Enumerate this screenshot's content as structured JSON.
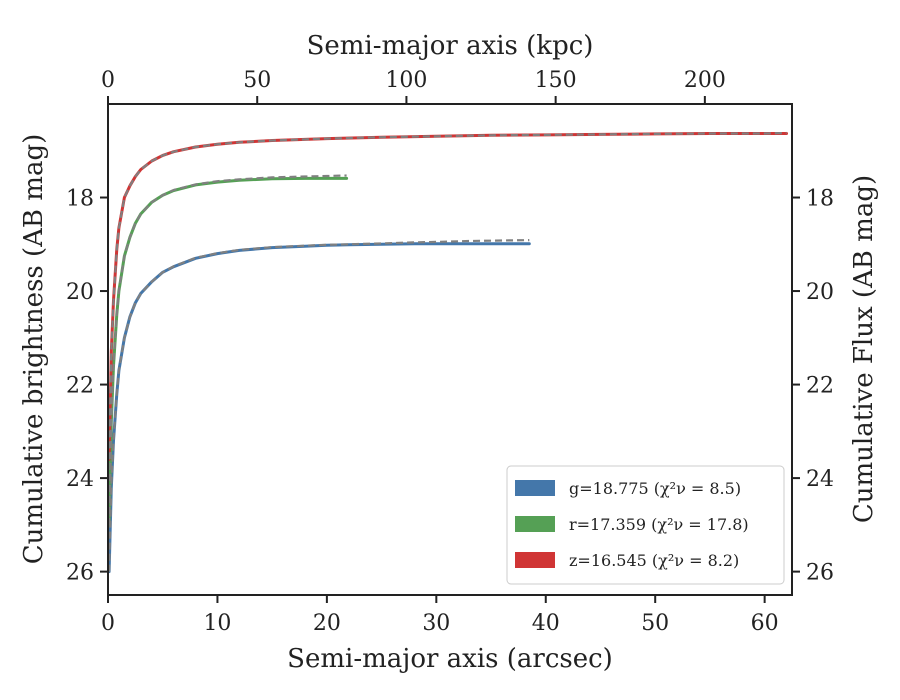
{
  "chart_data": {
    "type": "line",
    "xlabel": "Semi-major axis (arcsec)",
    "ylabel": "Cumulative brightness (AB mag)",
    "x2label": "Semi-major axis (kpc)",
    "y2label": "Cumulative Flux (AB mag)",
    "xlim": [
      0,
      62.5
    ],
    "ylim": [
      26.5,
      16.0
    ],
    "y_inverted": true,
    "x2lim": [
      0,
      229.2
    ],
    "xticks": [
      0,
      10,
      20,
      30,
      40,
      50,
      60
    ],
    "xtick_labels": [
      "0",
      "10",
      "20",
      "30",
      "40",
      "50",
      "60"
    ],
    "x2ticks": [
      0,
      50,
      100,
      150,
      200
    ],
    "x2tick_labels": [
      "0",
      "50",
      "100",
      "150",
      "200"
    ],
    "yticks": [
      18,
      20,
      22,
      24,
      26
    ],
    "ytick_labels": [
      "18",
      "20",
      "22",
      "24",
      "26"
    ],
    "grid": false,
    "legend_position": "bottom-right",
    "series": [
      {
        "name": "g=18.775 (χ²ν = 8.5)",
        "color": "#4477aa",
        "model_color": "#808080",
        "x": [
          0.1,
          0.3,
          0.5,
          0.8,
          1.0,
          1.5,
          2.0,
          2.5,
          3.0,
          4.0,
          5.0,
          6.0,
          8.0,
          10.0,
          12.0,
          15.0,
          18.0,
          20.0,
          22.0,
          25.0,
          28.0,
          30.0,
          33.0,
          36.0,
          38.5
        ],
        "y": [
          26.0,
          24.2,
          23.2,
          22.2,
          21.7,
          21.0,
          20.55,
          20.25,
          20.05,
          19.8,
          19.6,
          19.48,
          19.3,
          19.2,
          19.13,
          19.07,
          19.04,
          19.02,
          19.01,
          19.0,
          18.99,
          18.99,
          18.99,
          18.99,
          18.99
        ],
        "model_x": [
          0.1,
          0.3,
          0.5,
          0.8,
          1.0,
          1.5,
          2.0,
          2.5,
          3.0,
          4.0,
          5.0,
          6.0,
          8.0,
          10.0,
          12.0,
          15.0,
          18.0,
          20.0,
          22.0,
          25.0,
          28.0,
          30.0,
          33.0,
          36.0,
          38.5
        ],
        "model_y": [
          26.0,
          24.2,
          23.2,
          22.2,
          21.7,
          21.0,
          20.55,
          20.25,
          20.05,
          19.8,
          19.6,
          19.47,
          19.29,
          19.19,
          19.12,
          19.06,
          19.03,
          19.01,
          19.0,
          18.98,
          18.96,
          18.95,
          18.93,
          18.92,
          18.91
        ]
      },
      {
        "name": "r=17.359 (χ²ν = 17.8)",
        "color": "#55a055",
        "model_color": "#808080",
        "x": [
          0.1,
          0.3,
          0.5,
          0.8,
          1.0,
          1.5,
          2.0,
          2.5,
          3.0,
          4.0,
          5.0,
          6.0,
          8.0,
          10.0,
          12.0,
          15.0,
          18.0,
          20.0,
          21.8
        ],
        "y": [
          25.0,
          22.8,
          21.6,
          20.5,
          20.0,
          19.25,
          18.85,
          18.55,
          18.35,
          18.1,
          17.95,
          17.85,
          17.73,
          17.67,
          17.63,
          17.6,
          17.59,
          17.59,
          17.59
        ],
        "model_x": [
          0.1,
          0.3,
          0.5,
          0.8,
          1.0,
          1.5,
          2.0,
          2.5,
          3.0,
          4.0,
          5.0,
          6.0,
          8.0,
          10.0,
          12.0,
          15.0,
          18.0,
          20.0,
          21.8
        ],
        "model_y": [
          25.0,
          22.8,
          21.6,
          20.5,
          20.0,
          19.25,
          18.85,
          18.55,
          18.35,
          18.1,
          17.95,
          17.84,
          17.72,
          17.65,
          17.61,
          17.57,
          17.55,
          17.54,
          17.53
        ]
      },
      {
        "name": "z=16.545 (χ²ν = 8.2)",
        "color": "#d03535",
        "model_color": "#808080",
        "x": [
          0.1,
          0.3,
          0.5,
          0.8,
          1.0,
          1.5,
          2.0,
          2.5,
          3.0,
          4.0,
          5.0,
          6.0,
          8.0,
          10.0,
          12.0,
          15.0,
          20.0,
          25.0,
          30.0,
          35.0,
          40.0,
          45.0,
          50.0,
          55.0,
          60.0,
          62.0
        ],
        "y": [
          23.6,
          21.3,
          20.2,
          19.1,
          18.65,
          18.0,
          17.75,
          17.55,
          17.4,
          17.22,
          17.1,
          17.02,
          16.92,
          16.86,
          16.82,
          16.78,
          16.74,
          16.71,
          16.69,
          16.67,
          16.66,
          16.65,
          16.64,
          16.63,
          16.63,
          16.63
        ],
        "model_x": [
          0.1,
          0.3,
          0.5,
          0.8,
          1.0,
          1.5,
          2.0,
          2.5,
          3.0,
          4.0,
          5.0,
          6.0,
          8.0,
          10.0,
          12.0,
          15.0,
          20.0,
          25.0,
          30.0,
          35.0,
          40.0,
          45.0,
          50.0,
          55.0,
          60.0,
          62.0
        ],
        "model_y": [
          23.6,
          21.3,
          20.2,
          19.1,
          18.65,
          18.0,
          17.75,
          17.55,
          17.4,
          17.22,
          17.1,
          17.02,
          16.92,
          16.86,
          16.82,
          16.78,
          16.74,
          16.71,
          16.69,
          16.67,
          16.66,
          16.65,
          16.64,
          16.63,
          16.63,
          16.62
        ]
      }
    ]
  }
}
